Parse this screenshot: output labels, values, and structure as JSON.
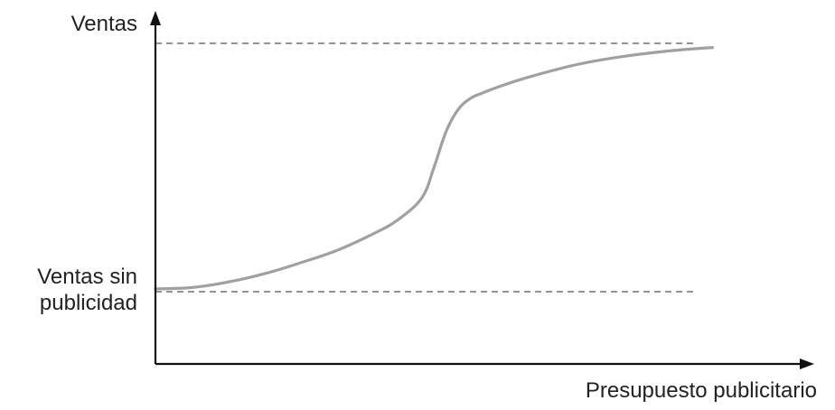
{
  "chart_data": {
    "type": "line",
    "title": "",
    "ylabel": "Ventas",
    "xlabel": "Presupuesto publicitario",
    "reference_lines": {
      "lower_label_line1": "Ventas sin",
      "lower_label_line2": "publicidad",
      "lower_value": 0.1,
      "upper_value": 1.0
    },
    "xlim": [
      0,
      1
    ],
    "ylim": [
      -0.18,
      1.08
    ],
    "grid": false,
    "legend": "none",
    "series": [
      {
        "x": [
          0.0,
          0.06,
          0.12,
          0.18,
          0.24,
          0.3,
          0.36,
          0.4,
          0.44,
          0.46,
          0.48,
          0.5,
          0.52,
          0.54,
          0.57,
          0.62,
          0.7,
          0.78,
          0.86,
          0.92
        ],
        "y": [
          0.11,
          0.115,
          0.135,
          0.165,
          0.205,
          0.25,
          0.31,
          0.36,
          0.44,
          0.55,
          0.68,
          0.76,
          0.8,
          0.82,
          0.845,
          0.88,
          0.925,
          0.955,
          0.975,
          0.985
        ]
      }
    ],
    "colors": {
      "axis": "#111111",
      "curve": "#a0a0a0",
      "reference": "#555555",
      "text": "#222222"
    }
  }
}
